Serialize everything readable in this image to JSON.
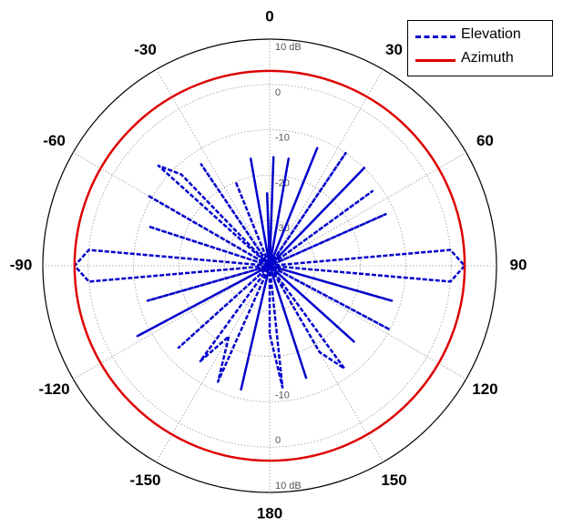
{
  "chart_data": {
    "type": "line",
    "projection": "polar",
    "title": "",
    "angle_ticks_deg": [
      0,
      30,
      60,
      90,
      120,
      150,
      180,
      -150,
      -120,
      -90,
      -60,
      -30
    ],
    "angle_tick_labels": [
      "0",
      "30",
      "60",
      "90",
      "120",
      "150",
      "180",
      "-150",
      "-120",
      "-90",
      "-60",
      "-30"
    ],
    "radial_unit": "dB",
    "radial_range_db": [
      -40,
      10
    ],
    "radial_ticks_db": [
      10,
      0,
      -10,
      -20,
      -30
    ],
    "radial_tick_labels": [
      "10 dB",
      "0",
      "-10",
      "-20",
      "-30"
    ],
    "grid": true,
    "legend_position": "top-right",
    "series": [
      {
        "name": "Elevation",
        "color": "#0000cc",
        "style": "dashed",
        "angle_deg": [
          -180,
          -174,
          -167,
          -162,
          -156,
          -150,
          -144,
          -138,
          -132,
          -126,
          -118,
          -112,
          -106,
          -100,
          -95,
          -90,
          -85,
          -80,
          -72,
          -66,
          -60,
          -54,
          -48,
          -44,
          -40,
          -34,
          -28,
          -22,
          -17,
          -10,
          -6,
          -2,
          0,
          2,
          6,
          10,
          17,
          22,
          28,
          34,
          40,
          44,
          48,
          54,
          60,
          66,
          72,
          80,
          85,
          90,
          95,
          100,
          106,
          112,
          118,
          126,
          132,
          138,
          144,
          150,
          156,
          162,
          167,
          174,
          180
        ],
        "gain_db": [
          -25,
          -40,
          -12,
          -40,
          -12,
          -22,
          -14,
          -40,
          -13,
          -40,
          -7,
          -40,
          -12,
          -40,
          0,
          3,
          0,
          -40,
          -12,
          -40,
          -9,
          -40,
          -7,
          -12,
          -40,
          -13,
          -40,
          -20,
          -40,
          -16,
          -40,
          -24,
          -40,
          -16,
          -40,
          -16,
          -40,
          -12,
          -40,
          -10,
          -40,
          -10,
          -40,
          -12,
          -40,
          -12,
          -40,
          -40,
          0,
          3,
          0,
          -40,
          -12,
          -40,
          -10,
          -40,
          -15,
          -40,
          -12,
          -18,
          -40,
          -14,
          -40,
          -13,
          -25
        ]
      },
      {
        "name": "Azimuth",
        "color": "#dd0000",
        "style": "solid",
        "angle_deg": [
          -180,
          -150,
          -120,
          -90,
          -60,
          -30,
          0,
          30,
          60,
          90,
          120,
          150,
          180
        ],
        "gain_db": [
          3,
          3,
          3,
          3,
          3,
          3,
          3,
          3,
          3,
          3,
          3,
          3,
          3
        ]
      }
    ]
  }
}
